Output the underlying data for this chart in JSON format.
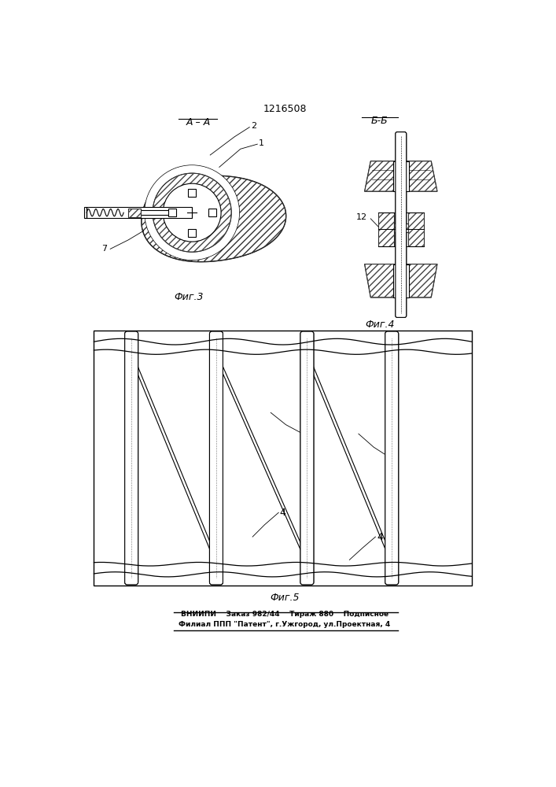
{
  "title": "1216508",
  "fig3_label": "Фиг.3",
  "fig4_label": "Фиг.4",
  "fig5_label": "Фиг.5",
  "section_aa": "А – А",
  "section_bb": "Б-Б",
  "footer_line1": "ВНИИПИ    Заказ 982/44    Тираж 880    Подписное",
  "footer_line2": "Филиал ППП \"Патент\", г.Ужгород, ул.Проектная, 4",
  "bg_color": "#ffffff",
  "line_color": "#000000"
}
